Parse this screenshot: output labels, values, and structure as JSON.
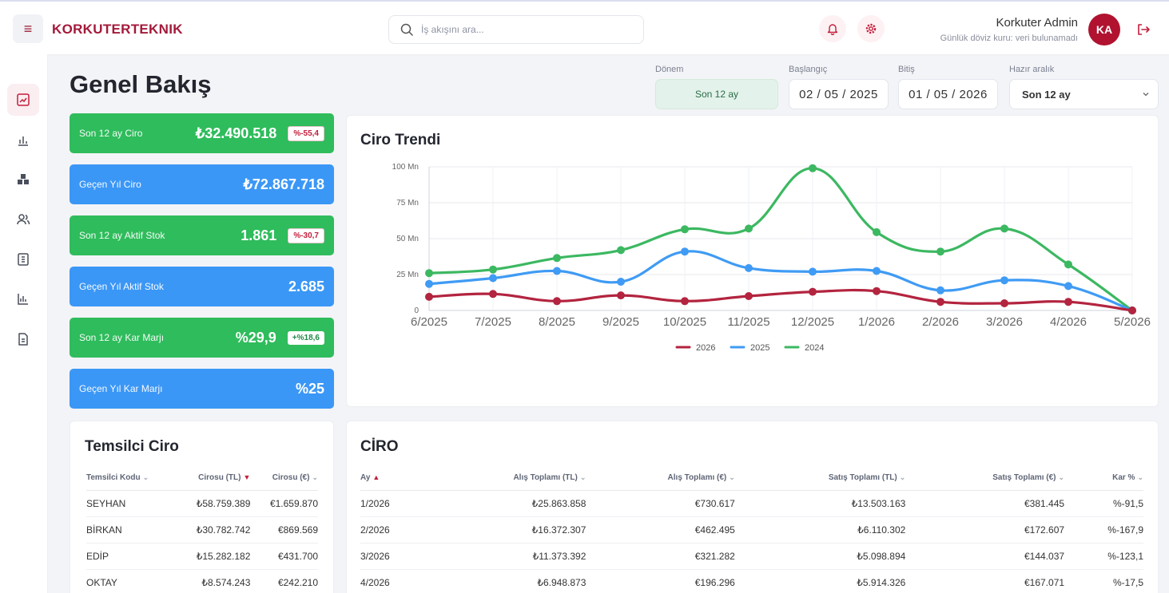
{
  "header": {
    "brand": "KORKUTERTEKNIK",
    "search_placeholder": "İş akışını ara...",
    "user_name": "Korkuter Admin",
    "user_sub": "Günlük döviz kuru: veri bulunamadı",
    "avatar_initials": "KA"
  },
  "page": {
    "title": "Genel Bakış"
  },
  "filters": {
    "period_label": "Dönem",
    "period_value": "Son 12 ay",
    "start_label": "Başlangıç",
    "start_value": "02 / 05 / 2025",
    "end_label": "Bitiş",
    "end_value": "01 / 05 / 2026",
    "range_label": "Hazır aralık",
    "range_value": "Son 12 ay"
  },
  "kpis": [
    {
      "label": "Son 12 ay Ciro",
      "value": "₺32.490.518",
      "badge": "%-55,4",
      "color": "green",
      "badge_type": "red"
    },
    {
      "label": "Geçen Yıl Ciro",
      "value": "₺72.867.718",
      "badge": "",
      "color": "blue",
      "badge_type": ""
    },
    {
      "label": "Son 12 ay Aktif Stok",
      "value": "1.861",
      "badge": "%-30,7",
      "color": "green",
      "badge_type": "red"
    },
    {
      "label": "Geçen Yıl Aktif Stok",
      "value": "2.685",
      "badge": "",
      "color": "blue",
      "badge_type": ""
    },
    {
      "label": "Son 12 ay Kar Marjı",
      "value": "%29,9",
      "badge": "+%18,6",
      "color": "green",
      "badge_type": "green"
    },
    {
      "label": "Geçen Yıl Kar Marjı",
      "value": "%25",
      "badge": "",
      "color": "blue",
      "badge_type": ""
    }
  ],
  "trend": {
    "title": "Ciro Trendi"
  },
  "chart_data": {
    "type": "line",
    "title": "Ciro Trendi",
    "categories": [
      "6/2025",
      "7/2025",
      "8/2025",
      "9/2025",
      "10/2025",
      "11/2025",
      "12/2025",
      "1/2026",
      "2/2026",
      "3/2026",
      "4/2026",
      "5/2026"
    ],
    "y_ticks": [
      "0",
      "25 Mn",
      "50 Mn",
      "75 Mn",
      "100 Mn"
    ],
    "ylim": [
      0,
      100
    ],
    "grid": true,
    "legend_position": "bottom",
    "series": [
      {
        "name": "2026",
        "color": "#b3243f",
        "values": [
          9.5,
          11.5,
          6.5,
          10.5,
          6.5,
          10,
          13,
          13.5,
          6,
          5,
          6,
          0
        ]
      },
      {
        "name": "2025",
        "color": "#3f9bf4",
        "values": [
          18.5,
          22.5,
          27.5,
          20,
          41,
          29.5,
          27,
          27.5,
          14,
          21,
          17,
          0
        ]
      },
      {
        "name": "2024",
        "color": "#3cb861",
        "values": [
          26,
          28.5,
          36.5,
          42,
          56.5,
          57,
          99,
          54.5,
          41,
          57,
          32,
          0
        ]
      }
    ]
  },
  "rep_table": {
    "title": "Temsilci Ciro",
    "headers": [
      "Temsilci Kodu",
      "Cirosu (TL)",
      "Cirosu (€)"
    ],
    "rows": [
      [
        "SEYHAN",
        "₺58.759.389",
        "€1.659.870"
      ],
      [
        "BİRKAN",
        "₺30.782.742",
        "€869.569"
      ],
      [
        "EDİP",
        "₺15.282.182",
        "€431.700"
      ],
      [
        "OKTAY",
        "₺8.574.243",
        "€242.210"
      ]
    ]
  },
  "ciro_table": {
    "title": "CİRO",
    "headers": [
      "Ay",
      "Alış Toplamı (TL)",
      "Alış Toplamı (€)",
      "Satış Toplamı (TL)",
      "Satış Toplamı (€)",
      "Kar %"
    ],
    "rows": [
      [
        "1/2026",
        "₺25.863.858",
        "€730.617",
        "₺13.503.163",
        "€381.445",
        "%-91,5"
      ],
      [
        "2/2026",
        "₺16.372.307",
        "€462.495",
        "₺6.110.302",
        "€172.607",
        "%-167,9"
      ],
      [
        "3/2026",
        "₺11.373.392",
        "€321.282",
        "₺5.098.894",
        "€144.037",
        "%-123,1"
      ],
      [
        "4/2026",
        "₺6.948.873",
        "€196.296",
        "₺5.914.326",
        "€167.071",
        "%-17,5"
      ]
    ]
  }
}
